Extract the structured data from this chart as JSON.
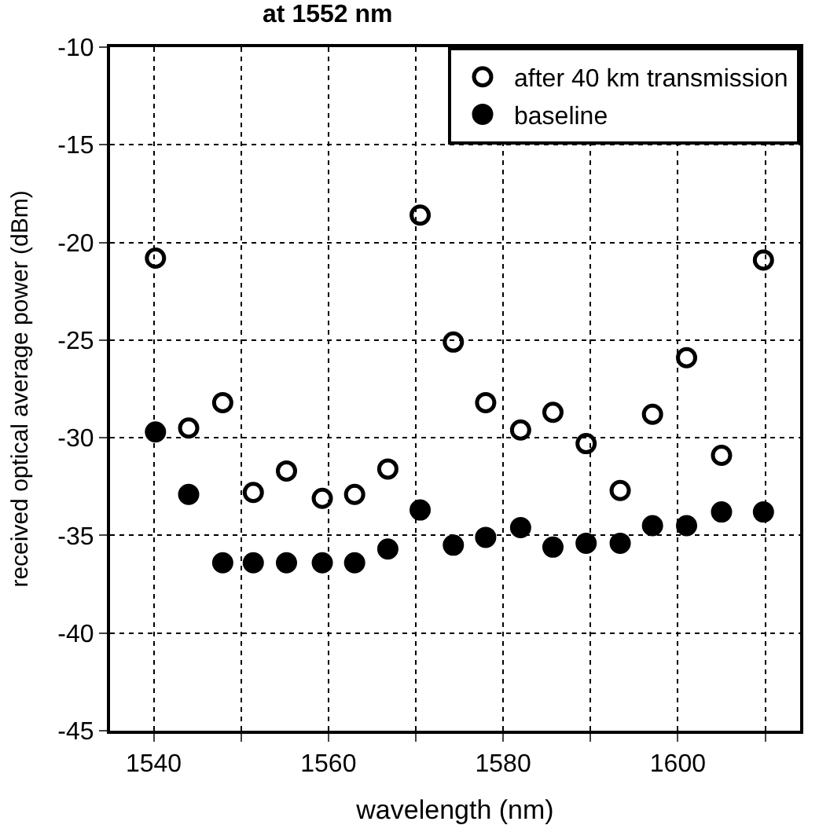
{
  "chart_data": {
    "type": "scatter",
    "title": "at 1552 nm",
    "xlabel": "wavelength (nm)",
    "ylabel": "received optical average power (dBm)",
    "x": [
      1540.2,
      1544.0,
      1547.9,
      1551.4,
      1555.2,
      1559.3,
      1563.0,
      1566.8,
      1570.5,
      1574.3,
      1578.0,
      1582.0,
      1585.7,
      1589.5,
      1593.4,
      1597.1,
      1601.0,
      1605.0,
      1609.8
    ],
    "series": [
      {
        "name": "after 40 km transmission",
        "color": "#000000",
        "marker": "circle-open",
        "values": [
          -20.8,
          -29.5,
          -28.2,
          -32.8,
          -31.7,
          -33.1,
          -32.9,
          -31.6,
          -18.6,
          -25.1,
          -28.2,
          -29.6,
          -28.7,
          -30.3,
          -32.7,
          -28.8,
          -25.9,
          -30.9,
          -20.9
        ]
      },
      {
        "name": "baseline",
        "color": "#000000",
        "marker": "circle",
        "values": [
          -29.7,
          -32.9,
          -36.4,
          -36.4,
          -36.4,
          -36.4,
          -36.4,
          -35.7,
          -33.7,
          -35.5,
          -35.1,
          -34.6,
          -35.6,
          -35.4,
          -35.4,
          -34.5,
          -34.5,
          -33.8,
          -33.8
        ]
      }
    ],
    "xlim": [
      1535,
      1614
    ],
    "ylim": [
      -45,
      -10
    ],
    "xticks": [
      1540,
      {
        "value": 1550,
        "label": null
      },
      1560,
      {
        "value": 1570,
        "label": null
      },
      1580,
      {
        "value": 1590,
        "label": null
      },
      1600,
      {
        "value": 1610,
        "label": null
      }
    ],
    "yticks": [
      -45,
      -40,
      -35,
      -30,
      -25,
      -20,
      -15,
      -10
    ],
    "grid": true,
    "legend": "top right"
  }
}
